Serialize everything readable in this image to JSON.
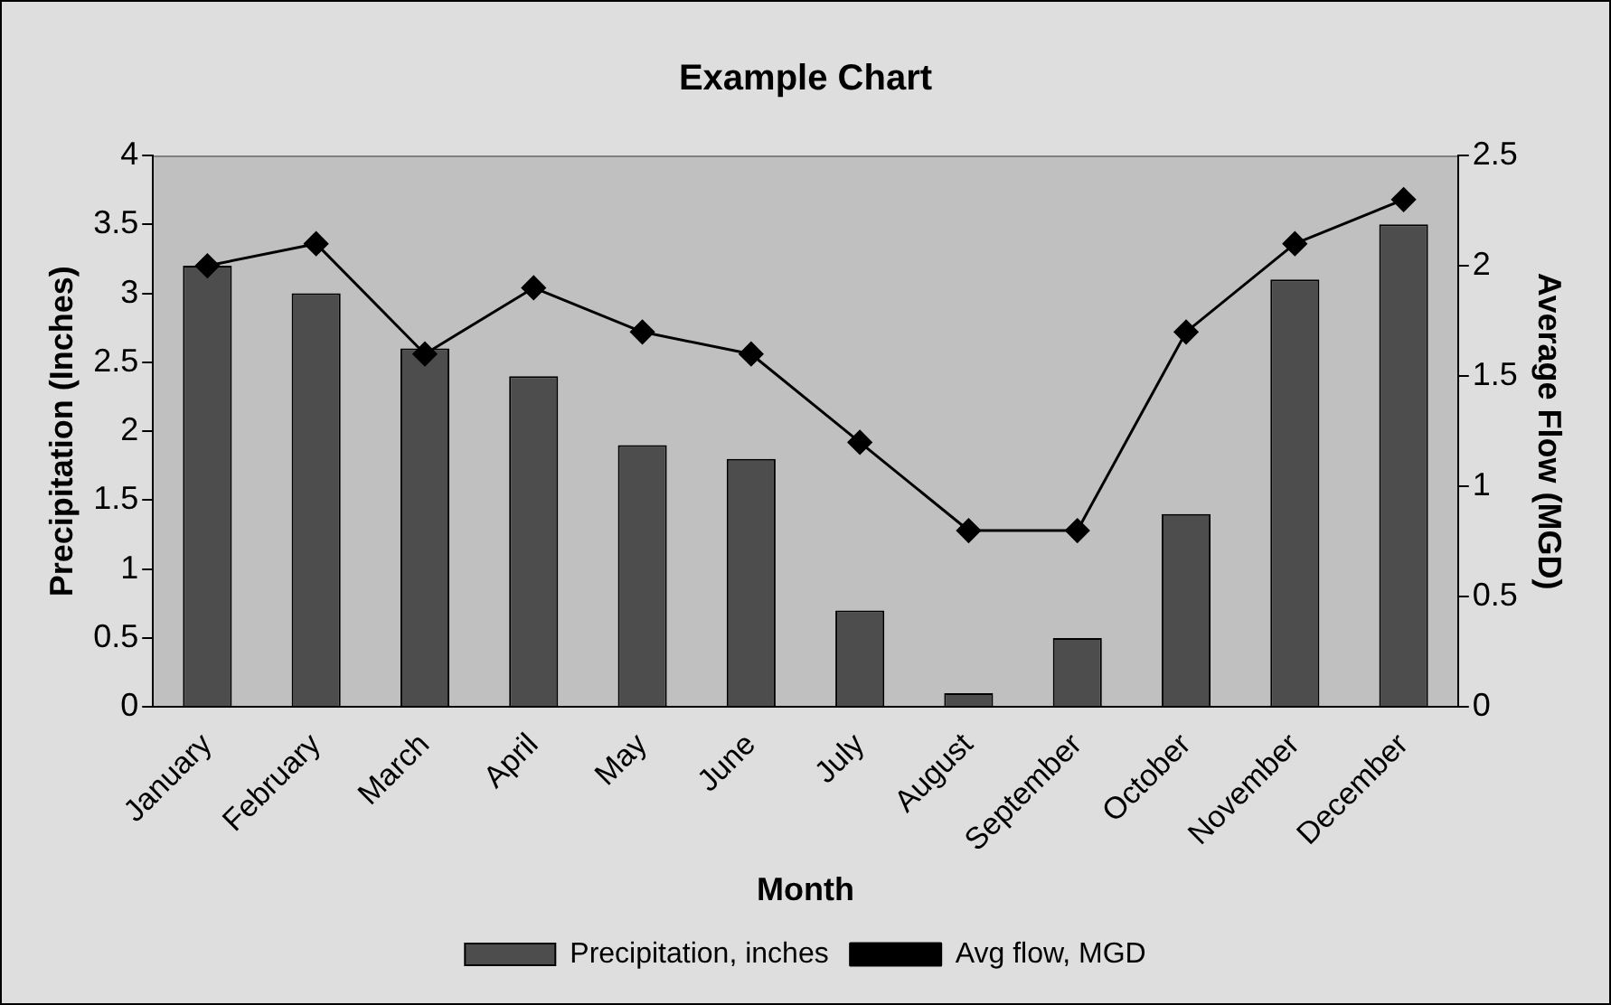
{
  "chart_data": {
    "type": "bar",
    "title": "Example Chart",
    "xlabel": "Month",
    "ylabel": "Precipitation (Inches)",
    "y2label": "Average Flow (MGD)",
    "categories": [
      "January",
      "February",
      "March",
      "April",
      "May",
      "June",
      "July",
      "August",
      "September",
      "October",
      "November",
      "December"
    ],
    "series": [
      {
        "name": "Precipitation, inches",
        "color": "#4d4d4d",
        "values": [
          3.2,
          3.0,
          2.6,
          2.4,
          1.9,
          1.8,
          0.7,
          0.1,
          0.5,
          1.4,
          3.1,
          3.5
        ]
      },
      {
        "name": "Avg flow, MGD",
        "type": "line",
        "axis": "y2",
        "color": "#000000",
        "marker": "diamond",
        "values": [
          2.0,
          2.1,
          1.6,
          1.9,
          1.7,
          1.6,
          1.2,
          0.8,
          0.8,
          1.7,
          2.1,
          2.3
        ]
      }
    ],
    "ylim": [
      0,
      4
    ],
    "yticks": [
      0,
      0.5,
      1,
      1.5,
      2,
      2.5,
      3,
      3.5,
      4
    ],
    "y2lim": [
      0,
      2.5
    ],
    "y2ticks": [
      0,
      0.5,
      1,
      1.5,
      2,
      2.5
    ],
    "grid": false,
    "legend": "bottom"
  }
}
